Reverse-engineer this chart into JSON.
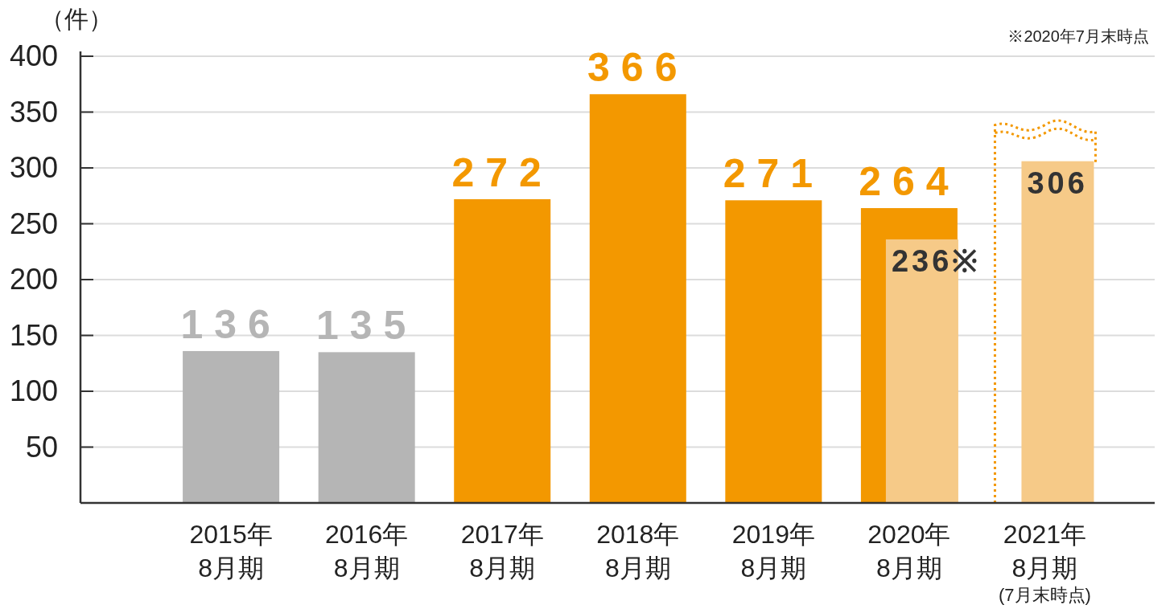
{
  "chart_data": {
    "type": "bar",
    "ylabel": "（件）",
    "annotations": [
      "※2020年7月末時点"
    ],
    "categories": [
      "2015年\n8月期",
      "2016年\n8月期",
      "2017年\n8月期",
      "2018年\n8月期",
      "2019年\n8月期",
      "2020年\n8月期",
      "2021年\n8月期\n(7月末時点)"
    ],
    "series": [
      {
        "colors": [
          "#b5b5b5",
          "#b5b5b5",
          "#f39800",
          "#f39800",
          "#f39800",
          "#f39800",
          null
        ],
        "values": [
          136,
          135,
          272,
          366,
          271,
          264,
          null
        ],
        "value_labels": [
          "136",
          "135",
          "272",
          "366",
          "271",
          "264",
          null
        ]
      },
      {
        "color": "#f6ca88",
        "values": [
          null,
          null,
          null,
          null,
          null,
          236,
          306
        ],
        "value_labels": [
          null,
          null,
          null,
          null,
          null,
          "236※",
          "306"
        ]
      }
    ],
    "ylim": [
      0,
      400
    ],
    "yticks": [
      50,
      100,
      150,
      200,
      250,
      300,
      350,
      400
    ],
    "grid": "y"
  }
}
